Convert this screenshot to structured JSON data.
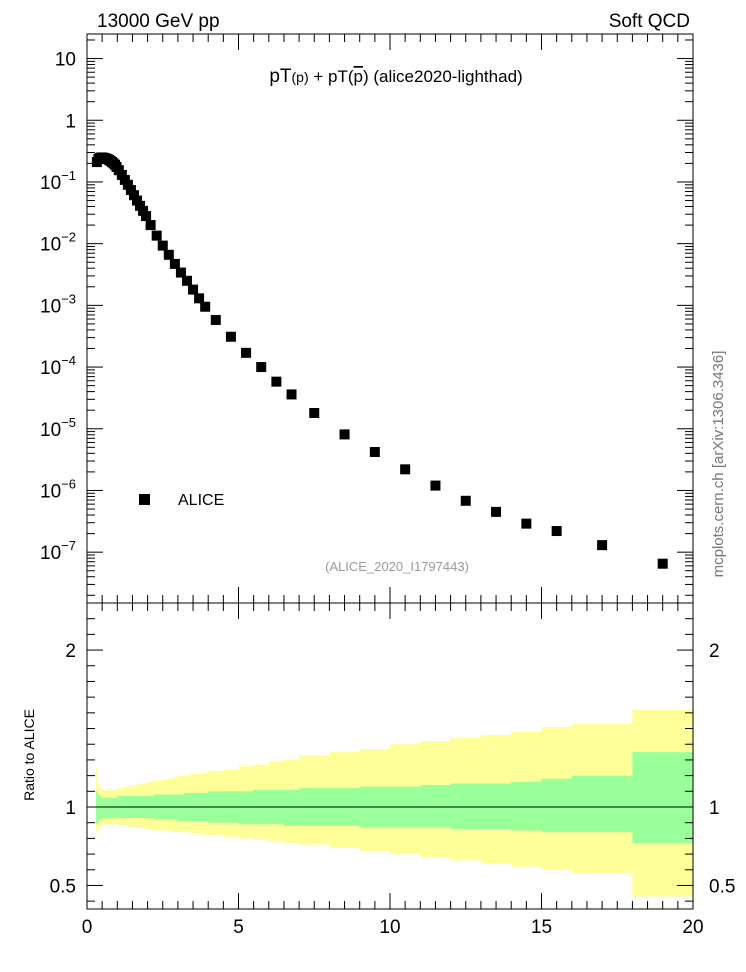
{
  "header": {
    "energy_label": "13000 GeV pp",
    "category_label": "Soft QCD"
  },
  "side_label": "mcplots.cern.ch [arXiv:1306.3436]",
  "chart_data": [
    {
      "type": "scatter",
      "title_parts": {
        "a": "pT",
        "b": "(p)",
        "c": " + pT(",
        "d": "p",
        "e": ")",
        "f": " (alice2020-lighthad)"
      },
      "analysis_label": "(ALICE_2020_I1797443)",
      "yscale": "log",
      "xlim": [
        0,
        20
      ],
      "ylim": [
        1.5e-08,
        25
      ],
      "y_ticks": [
        {
          "v": 10,
          "t": "10"
        },
        {
          "v": 1,
          "t": "1"
        },
        {
          "v": 0.1,
          "base": "10",
          "exp": "−1"
        },
        {
          "v": 0.01,
          "base": "10",
          "exp": "−2"
        },
        {
          "v": 0.001,
          "base": "10",
          "exp": "−3"
        },
        {
          "v": 0.0001,
          "base": "10",
          "exp": "−4"
        },
        {
          "v": 1e-05,
          "base": "10",
          "exp": "−5"
        },
        {
          "v": 1e-06,
          "base": "10",
          "exp": "−6"
        },
        {
          "v": 1e-07,
          "base": "10",
          "exp": "−7"
        }
      ],
      "legend": {
        "entry": "ALICE",
        "position": "lower-left"
      },
      "series": [
        {
          "name": "ALICE",
          "marker": "square",
          "x": [
            0.325,
            0.375,
            0.425,
            0.475,
            0.525,
            0.575,
            0.625,
            0.675,
            0.725,
            0.775,
            0.825,
            0.875,
            0.925,
            0.975,
            1.05,
            1.15,
            1.25,
            1.35,
            1.45,
            1.55,
            1.65,
            1.75,
            1.85,
            1.95,
            2.1,
            2.3,
            2.5,
            2.7,
            2.9,
            3.1,
            3.3,
            3.5,
            3.7,
            3.9,
            4.25,
            4.75,
            5.25,
            5.75,
            6.25,
            6.75,
            7.5,
            8.5,
            9.5,
            10.5,
            11.5,
            12.5,
            13.5,
            14.5,
            15.5,
            17.0,
            19.0
          ],
          "y": [
            0.21,
            0.235,
            0.245,
            0.25,
            0.248,
            0.245,
            0.24,
            0.235,
            0.228,
            0.22,
            0.21,
            0.2,
            0.19,
            0.175,
            0.155,
            0.13,
            0.108,
            0.09,
            0.074,
            0.061,
            0.05,
            0.041,
            0.034,
            0.028,
            0.02,
            0.0135,
            0.0093,
            0.0066,
            0.0047,
            0.0034,
            0.0025,
            0.0018,
            0.0013,
            0.00095,
            0.00058,
            0.00031,
            0.00017,
            0.0001,
            5.8e-05,
            3.6e-05,
            1.8e-05,
            8.1e-06,
            4.2e-06,
            2.2e-06,
            1.2e-06,
            6.8e-07,
            4.5e-07,
            2.9e-07,
            2.2e-07,
            1.3e-07,
            6.5e-08
          ]
        }
      ]
    },
    {
      "type": "area",
      "ylabel": "Ratio to ALICE",
      "xlim": [
        0,
        20
      ],
      "ylim": [
        0.35,
        2.3
      ],
      "x_ticks": [
        0,
        5,
        10,
        15,
        20
      ],
      "y_ticks": [
        0.5,
        1,
        2
      ],
      "x_edges": [
        0.3,
        0.35,
        0.4,
        0.45,
        0.5,
        0.55,
        0.6,
        0.65,
        0.7,
        0.75,
        0.8,
        0.85,
        0.9,
        0.95,
        1.0,
        1.1,
        1.2,
        1.3,
        1.4,
        1.5,
        1.6,
        1.7,
        1.8,
        1.9,
        2.0,
        2.2,
        2.4,
        2.6,
        2.8,
        3.0,
        3.2,
        3.4,
        3.6,
        3.8,
        4.0,
        4.5,
        5.0,
        5.5,
        6.0,
        6.5,
        7.0,
        8.0,
        9.0,
        10.0,
        11.0,
        12.0,
        13.0,
        14.0,
        15.0,
        16.0,
        18.0,
        20.0
      ],
      "bands": [
        {
          "name": "stat",
          "color": "#99ff99",
          "lower": [
            0.89,
            0.9,
            0.92,
            0.92,
            0.93,
            0.92,
            0.93,
            0.92,
            0.93,
            0.92,
            0.93,
            0.92,
            0.93,
            0.93,
            0.93,
            0.93,
            0.93,
            0.93,
            0.93,
            0.93,
            0.93,
            0.93,
            0.93,
            0.93,
            0.93,
            0.92,
            0.92,
            0.92,
            0.92,
            0.91,
            0.91,
            0.91,
            0.91,
            0.91,
            0.9,
            0.9,
            0.89,
            0.89,
            0.89,
            0.88,
            0.88,
            0.88,
            0.87,
            0.87,
            0.87,
            0.86,
            0.86,
            0.85,
            0.84,
            0.84,
            0.77
          ],
          "upper": [
            1.1,
            1.08,
            1.07,
            1.06,
            1.06,
            1.06,
            1.06,
            1.06,
            1.06,
            1.06,
            1.06,
            1.06,
            1.06,
            1.06,
            1.07,
            1.07,
            1.07,
            1.07,
            1.07,
            1.07,
            1.07,
            1.07,
            1.07,
            1.07,
            1.07,
            1.08,
            1.08,
            1.08,
            1.08,
            1.08,
            1.09,
            1.09,
            1.09,
            1.09,
            1.1,
            1.1,
            1.1,
            1.11,
            1.11,
            1.11,
            1.12,
            1.12,
            1.13,
            1.13,
            1.14,
            1.15,
            1.15,
            1.16,
            1.18,
            1.2,
            1.35
          ]
        },
        {
          "name": "total",
          "color": "#ffff99",
          "lower": [
            0.83,
            0.86,
            0.88,
            0.87,
            0.89,
            0.88,
            0.89,
            0.88,
            0.89,
            0.88,
            0.89,
            0.88,
            0.89,
            0.89,
            0.88,
            0.88,
            0.88,
            0.88,
            0.87,
            0.87,
            0.87,
            0.87,
            0.87,
            0.86,
            0.86,
            0.85,
            0.85,
            0.85,
            0.84,
            0.84,
            0.84,
            0.83,
            0.83,
            0.82,
            0.82,
            0.81,
            0.8,
            0.79,
            0.78,
            0.77,
            0.76,
            0.74,
            0.72,
            0.7,
            0.68,
            0.66,
            0.64,
            0.62,
            0.6,
            0.58,
            0.43
          ],
          "upper": [
            1.25,
            1.15,
            1.12,
            1.12,
            1.11,
            1.11,
            1.11,
            1.11,
            1.11,
            1.11,
            1.11,
            1.11,
            1.11,
            1.11,
            1.12,
            1.12,
            1.13,
            1.13,
            1.14,
            1.14,
            1.14,
            1.15,
            1.15,
            1.15,
            1.16,
            1.17,
            1.17,
            1.18,
            1.19,
            1.2,
            1.2,
            1.21,
            1.21,
            1.22,
            1.23,
            1.24,
            1.26,
            1.27,
            1.29,
            1.3,
            1.33,
            1.35,
            1.37,
            1.4,
            1.42,
            1.44,
            1.46,
            1.48,
            1.51,
            1.53,
            1.62
          ]
        }
      ],
      "reference_line": 1
    }
  ]
}
